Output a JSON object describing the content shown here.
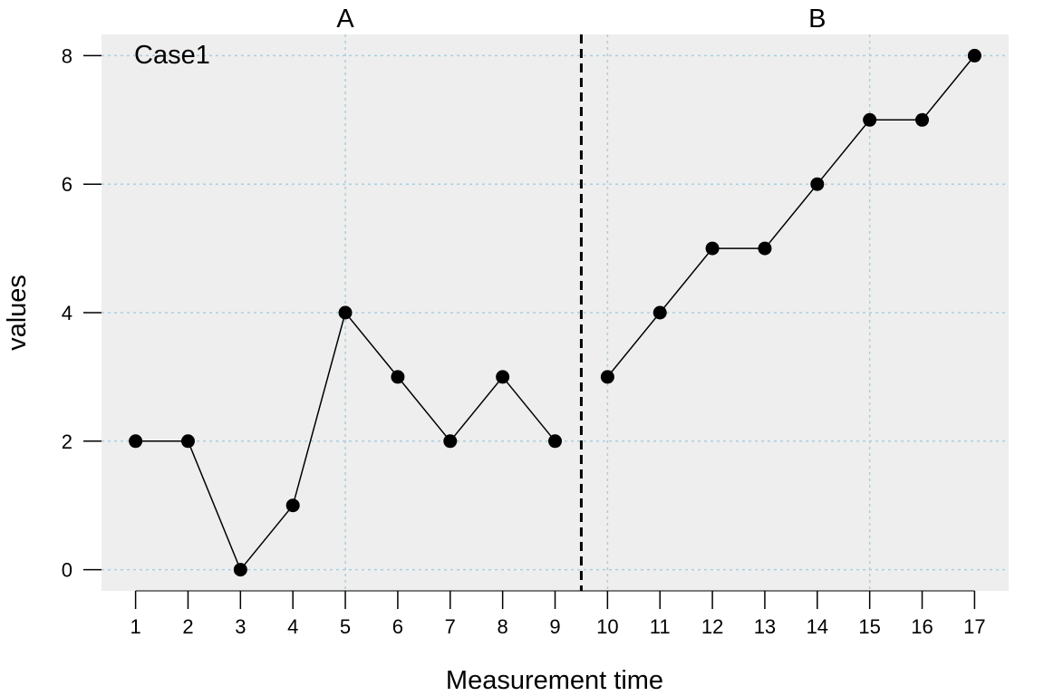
{
  "chart_data": {
    "type": "line",
    "case_label": "Case1",
    "xlabel": "Measurement time",
    "ylabel": "values",
    "xlim": [
      0.35,
      17.65
    ],
    "ylim": [
      -0.33,
      8.33
    ],
    "x_ticks": [
      1,
      2,
      3,
      4,
      5,
      6,
      7,
      8,
      9,
      10,
      11,
      12,
      13,
      14,
      15,
      16,
      17
    ],
    "y_ticks": [
      0,
      2,
      4,
      6,
      8
    ],
    "grid": true,
    "phase_change_x": 9.5,
    "phases": [
      {
        "label": "A",
        "label_x": 5,
        "x": [
          1,
          2,
          3,
          4,
          5,
          6,
          7,
          8,
          9
        ],
        "values": [
          2,
          2,
          0,
          1,
          4,
          3,
          2,
          3,
          2
        ]
      },
      {
        "label": "B",
        "label_x": 14,
        "x": [
          10,
          11,
          12,
          13,
          14,
          15,
          16,
          17
        ],
        "values": [
          3,
          4,
          5,
          5,
          6,
          7,
          7,
          8
        ]
      }
    ],
    "colors": {
      "panel_bg": "#eeeeee",
      "grid": "#a9cfe0",
      "line": "#000000",
      "points": "#000000"
    }
  }
}
